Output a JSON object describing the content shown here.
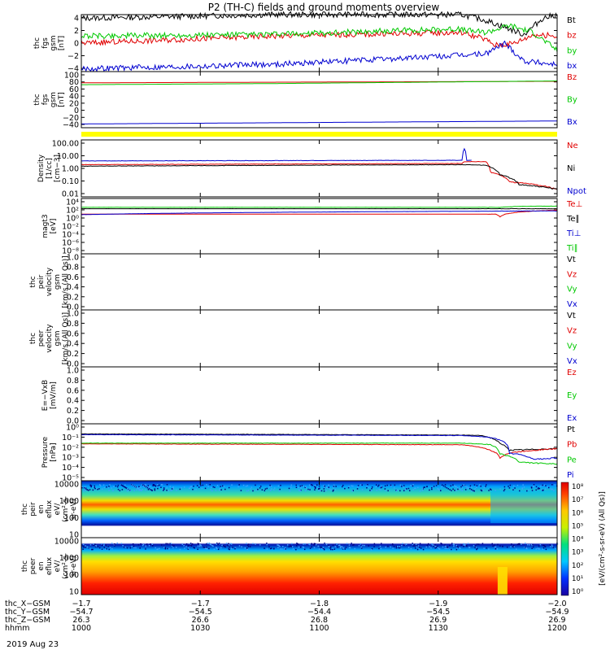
{
  "title": "P2 (TH-C) fields and ground moments overview",
  "date_label": "2019 Aug 23",
  "colors": {
    "black": "#000000",
    "red": "#e00000",
    "green": "#00c800",
    "blue": "#0000d0",
    "yellow": "#ffff00"
  },
  "panels": [
    {
      "id": "fgs",
      "ylabel": [
        "thc",
        "fgs",
        "gsm",
        "[nT]"
      ],
      "yticks": [
        "4",
        "2",
        "0",
        "−2",
        "−4"
      ],
      "legend": [
        {
          "text": "Bt",
          "color": "black"
        },
        {
          "text": "bz",
          "color": "red"
        },
        {
          "text": "by",
          "color": "green"
        },
        {
          "text": "bx",
          "color": "blue"
        }
      ]
    },
    {
      "id": "fgs_dsl",
      "ylabel": [
        "thc",
        "fgs",
        "gsm",
        "[nT]"
      ],
      "yticks": [
        "100",
        "80",
        "60",
        "40",
        "20",
        "0",
        "−20",
        "−40"
      ],
      "legend": [
        {
          "text": "Bz",
          "color": "red"
        },
        {
          "text": "By",
          "color": "green"
        },
        {
          "text": "Bx",
          "color": "blue"
        }
      ]
    },
    {
      "id": "density",
      "ylabel": [
        "Density",
        "[1/cc]",
        "[cm−3]"
      ],
      "yticks": [
        "100.00",
        "10.00",
        "1.00",
        "0.10",
        "0.01"
      ],
      "legend": [
        {
          "text": "Ne",
          "color": "red"
        },
        {
          "text": "Ni",
          "color": "black"
        },
        {
          "text": "Npot",
          "color": "blue"
        }
      ]
    },
    {
      "id": "temp",
      "ylabel": [
        "magt3",
        "[eV]"
      ],
      "yticks": [
        "10⁴",
        "10²",
        "10⁰",
        "10⁻²",
        "10⁻⁴",
        "10⁻⁶",
        "10⁻⁸"
      ],
      "legend": [
        {
          "text": "Te⊥",
          "color": "red"
        },
        {
          "text": "Te∥",
          "color": "black"
        },
        {
          "text": "Ti⊥",
          "color": "blue"
        },
        {
          "text": "Ti∥",
          "color": "green"
        }
      ]
    },
    {
      "id": "peir_vel",
      "ylabel": [
        "thc",
        "peir",
        "velocity",
        "gsm",
        "[km/s (All Qs)]"
      ],
      "yticks": [
        "1.0",
        "0.8",
        "0.6",
        "0.4",
        "0.2",
        "0.0"
      ],
      "legend": [
        {
          "text": "Vt",
          "color": "black"
        },
        {
          "text": "Vz",
          "color": "red"
        },
        {
          "text": "Vy",
          "color": "green"
        },
        {
          "text": "Vx",
          "color": "blue"
        }
      ]
    },
    {
      "id": "peer_vel",
      "ylabel": [
        "thc",
        "peer",
        "velocity",
        "gsm",
        "[km/s (All Qs)]"
      ],
      "yticks": [
        "1.0",
        "0.8",
        "0.6",
        "0.4",
        "0.2",
        "0.0"
      ],
      "legend": [
        {
          "text": "Vt",
          "color": "black"
        },
        {
          "text": "Vz",
          "color": "red"
        },
        {
          "text": "Vy",
          "color": "green"
        },
        {
          "text": "Vx",
          "color": "blue"
        }
      ]
    },
    {
      "id": "efield",
      "ylabel": [
        "E=−VxB",
        "[mV/m]"
      ],
      "yticks": [
        "1.0",
        "0.8",
        "0.6",
        "0.4",
        "0.2",
        "0.0"
      ],
      "legend": [
        {
          "text": "Ez",
          "color": "red"
        },
        {
          "text": "Ey",
          "color": "green"
        },
        {
          "text": "Ex",
          "color": "blue"
        }
      ]
    },
    {
      "id": "pressure",
      "ylabel": [
        "Pressure",
        "[nPa]"
      ],
      "yticks": [
        "10⁰",
        "10⁻¹",
        "10⁻²",
        "10⁻³",
        "10⁻⁴",
        "10⁻⁵"
      ],
      "legend": [
        {
          "text": "Pt",
          "color": "black"
        },
        {
          "text": "Pb",
          "color": "red"
        },
        {
          "text": "Pe",
          "color": "green"
        },
        {
          "text": "Pi",
          "color": "blue"
        }
      ]
    },
    {
      "id": "peir_en",
      "ylabel": [
        "thc",
        "peir",
        "en",
        "eflux",
        "eV/",
        "(cm²-s-",
        "sr-eV)"
      ],
      "yticks": [
        "10000",
        "1000",
        "100",
        "10"
      ],
      "legend": []
    },
    {
      "id": "peer_en",
      "ylabel": [
        "thc",
        "peer",
        "en",
        "eflux",
        "eV/",
        "(cm²-s-",
        "sr-eV)"
      ],
      "yticks": [
        "10000",
        "1000",
        "100",
        "10"
      ],
      "legend": []
    }
  ],
  "colorbar": {
    "label": "[eV/(cm²-s-sr-eV) (All Qs)]",
    "ticks": [
      "10⁸",
      "10⁷",
      "10⁶",
      "10⁵",
      "10⁴",
      "10³",
      "10²",
      "10¹",
      "10⁰"
    ]
  },
  "x_axis": {
    "row_labels": [
      "thc_X−GSM",
      "thc_Y−GSM",
      "thc_Z−GSM",
      "hhmm"
    ],
    "columns": [
      {
        "x": "−1.7",
        "y": "−54.7",
        "z": "26.3",
        "t": "1000"
      },
      {
        "x": "−1.7",
        "y": "−54.5",
        "z": "26.6",
        "t": "1030"
      },
      {
        "x": "−1.8",
        "y": "−54.4",
        "z": "26.8",
        "t": "1100"
      },
      {
        "x": "−1.9",
        "y": "−54.5",
        "z": "26.9",
        "t": "1130"
      },
      {
        "x": "−2.0",
        "y": "−54.9",
        "z": "26.9",
        "t": "1200"
      }
    ]
  },
  "chart_data": {
    "type": "line",
    "x_range": [
      "10:00",
      "12:00"
    ],
    "xlabel": "hhmm",
    "fgs": {
      "ylim": [
        -4,
        4
      ],
      "series": [
        {
          "name": "Bt",
          "knots": [
            [
              0,
              3.5
            ],
            [
              40,
              4
            ],
            [
              80,
              4
            ],
            [
              85,
              3.2
            ],
            [
              90,
              2
            ],
            [
              93,
              1.2
            ],
            [
              97,
              3.5
            ],
            [
              100,
              4
            ]
          ]
        },
        {
          "name": "bz",
          "knots": [
            [
              0,
              0
            ],
            [
              40,
              1
            ],
            [
              80,
              1.5
            ],
            [
              85,
              0.5
            ],
            [
              87,
              -0.3
            ],
            [
              91,
              0
            ],
            [
              95,
              1.2
            ],
            [
              100,
              1
            ]
          ]
        },
        {
          "name": "by",
          "knots": [
            [
              0,
              1
            ],
            [
              40,
              1.2
            ],
            [
              78,
              2
            ],
            [
              85,
              1.5
            ],
            [
              90,
              2.5
            ],
            [
              95,
              1.5
            ],
            [
              100,
              -1
            ]
          ]
        },
        {
          "name": "bx",
          "knots": [
            [
              0,
              -3.6
            ],
            [
              40,
              -3
            ],
            [
              78,
              -1.8
            ],
            [
              85,
              -1.5
            ],
            [
              89,
              0
            ],
            [
              93,
              -2.5
            ],
            [
              100,
              -3
            ]
          ]
        }
      ]
    },
    "fgs_dsl": {
      "ylim": [
        -50,
        100
      ],
      "series": [
        {
          "name": "Bz",
          "knots": [
            [
              0,
              70
            ],
            [
              100,
              74
            ]
          ]
        },
        {
          "name": "By",
          "knots": [
            [
              0,
              65
            ],
            [
              40,
              68
            ],
            [
              100,
              75
            ]
          ]
        },
        {
          "name": "Bx",
          "knots": [
            [
              0,
              -40
            ],
            [
              100,
              -32
            ]
          ]
        }
      ]
    },
    "density": {
      "ylim_log": [
        0.005,
        200
      ],
      "series": [
        {
          "name": "Npot",
          "knots": [
            [
              0,
              4
            ],
            [
              80,
              4.5
            ],
            [
              80.5,
              40
            ],
            [
              81,
              4.5
            ],
            [
              82,
              4.5
            ]
          ]
        },
        {
          "name": "Ne",
          "knots": [
            [
              0,
              2
            ],
            [
              80,
              2.5
            ],
            [
              80.5,
              3.5
            ],
            [
              85,
              3.5
            ],
            [
              86,
              0.5
            ],
            [
              90,
              0.08
            ],
            [
              100,
              0.02
            ]
          ]
        },
        {
          "name": "Ni",
          "knots": [
            [
              0,
              1.5
            ],
            [
              80,
              2
            ],
            [
              85,
              1.8
            ],
            [
              88,
              0.3
            ],
            [
              92,
              0.05
            ],
            [
              100,
              0.02
            ]
          ]
        }
      ]
    },
    "temp": {
      "ylim_log": [
        1e-08,
        10000.0
      ],
      "series": [
        {
          "name": "Te∥",
          "knots": [
            [
              0,
              60
            ],
            [
              100,
              60
            ]
          ]
        },
        {
          "name": "Ti∥",
          "knots": [
            [
              0,
              120
            ],
            [
              88,
              120
            ],
            [
              92,
              200
            ],
            [
              100,
              220
            ]
          ]
        },
        {
          "name": "Te⊥",
          "knots": [
            [
              0,
              4
            ],
            [
              87,
              4
            ],
            [
              88,
              1
            ],
            [
              90,
              6
            ],
            [
              100,
              30
            ]
          ]
        },
        {
          "name": "Ti⊥",
          "knots": [
            [
              0,
              3
            ],
            [
              100,
              20
            ]
          ]
        }
      ]
    },
    "pressure": {
      "ylim_log": [
        1e-06,
        1.5
      ],
      "series": [
        {
          "name": "Pt",
          "knots": [
            [
              0,
              0.12
            ],
            [
              80,
              0.09
            ],
            [
              84,
              0.08
            ],
            [
              88,
              0.01
            ],
            [
              90,
              0.002
            ],
            [
              100,
              0.003
            ]
          ]
        },
        {
          "name": "Pb",
          "knots": [
            [
              0,
              0.01
            ],
            [
              80,
              0.008
            ],
            [
              86,
              0.002
            ],
            [
              88,
              0.0003
            ],
            [
              90,
              0.001
            ],
            [
              100,
              0.003
            ]
          ]
        },
        {
          "name": "Pe",
          "knots": [
            [
              0,
              0.012
            ],
            [
              80,
              0.012
            ],
            [
              86,
              0.008
            ],
            [
              88,
              0.0008
            ],
            [
              92,
              0.0001
            ],
            [
              100,
              6e-05
            ]
          ]
        },
        {
          "name": "Pi",
          "knots": [
            [
              0,
              0.1
            ],
            [
              80,
              0.08
            ],
            [
              86,
              0.05
            ],
            [
              90,
              0.001
            ],
            [
              95,
              0.0002
            ],
            [
              100,
              0.0003
            ]
          ]
        }
      ]
    }
  }
}
